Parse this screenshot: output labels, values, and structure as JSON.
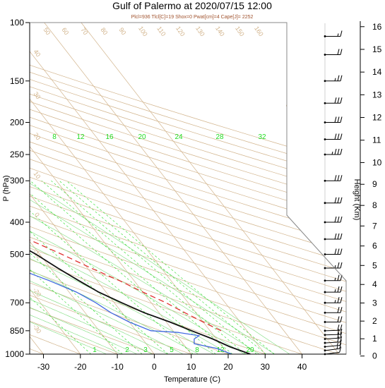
{
  "chart_data": {
    "type": "skew-t",
    "title": "Gulf of Palermo at 2020/07/15 12:00",
    "subtitle": "Plcl=936 Tlcl[C]=19 Shox=0 Pwat[cm]=4 Cape[J]= 2252",
    "xlabel": "Temperature (C)",
    "ylabel": "P (hPa)",
    "y2label": "Height (Km)",
    "x_ticks": [
      "-30",
      "-20",
      "-10",
      "0",
      "10",
      "20",
      "30",
      "40"
    ],
    "p_ticks": [
      "100",
      "150",
      "200",
      "250",
      "300",
      "400",
      "500",
      "700",
      "850",
      "1000"
    ],
    "height_ticks": [
      "0",
      "1",
      "2",
      "3",
      "4",
      "5",
      "6",
      "7",
      "8",
      "9",
      "10",
      "11",
      "12",
      "13",
      "14",
      "15",
      "16"
    ],
    "mixing_ratio_labels": [
      "8",
      "12",
      "16",
      "20",
      "24",
      "28",
      "32"
    ],
    "mixing_ratio_bottom_labels": [
      "1",
      "2",
      "3",
      "5",
      "8",
      "12",
      "20"
    ],
    "dry_adiabat_labels": [
      "50",
      "60",
      "70",
      "80",
      "90",
      "100",
      "110",
      "120",
      "130",
      "140",
      "150",
      "160"
    ],
    "left_adiabat_labels": [
      "40",
      "30",
      "20",
      "10",
      "0",
      "-10",
      "-20",
      "-30"
    ],
    "isotherm_labels": [
      "30",
      "20",
      "10",
      "0",
      "-10",
      "-20",
      "-30"
    ],
    "colors": {
      "temperature": "#111111",
      "dewpoint": "#4169e1",
      "parcel": "#e03030",
      "dry_adiabat": "#d2b48c",
      "moist_adiabat": "#7ddc7d",
      "mixing_ratio": "#22dd22",
      "frame": "#888888"
    },
    "series": [
      {
        "kind": "temperature",
        "points": [
          [
            26,
            1000
          ],
          [
            22,
            950
          ],
          [
            19,
            900
          ],
          [
            15,
            850
          ],
          [
            11,
            800
          ],
          [
            6,
            750
          ],
          [
            2,
            700
          ],
          [
            -2,
            650
          ],
          [
            -5,
            600
          ],
          [
            -8,
            550
          ],
          [
            -11,
            500
          ],
          [
            -15,
            450
          ],
          [
            -20,
            400
          ],
          [
            -25,
            350
          ],
          [
            -31,
            300
          ],
          [
            -37,
            270
          ],
          [
            -43,
            250
          ],
          [
            -49,
            230
          ],
          [
            -55,
            210
          ],
          [
            -58,
            200
          ],
          [
            -64,
            180
          ],
          [
            -69,
            160
          ],
          [
            -73,
            150
          ],
          [
            -77,
            135
          ],
          [
            -79,
            120
          ],
          [
            -82,
            115
          ]
        ]
      },
      {
        "kind": "dewpoint",
        "points": [
          [
            21,
            1000
          ],
          [
            18,
            960
          ],
          [
            13,
            930
          ],
          [
            14,
            900
          ],
          [
            16,
            880
          ],
          [
            11,
            860
          ],
          [
            4,
            850
          ],
          [
            0,
            800
          ],
          [
            -3,
            750
          ],
          [
            -5,
            700
          ],
          [
            -8,
            650
          ],
          [
            -13,
            600
          ],
          [
            -18,
            560
          ],
          [
            -17,
            500
          ],
          [
            -22,
            460
          ],
          [
            -26,
            420
          ],
          [
            -30,
            380
          ],
          [
            -35,
            340
          ],
          [
            -40,
            300
          ],
          [
            -46,
            260
          ],
          [
            -58,
            240
          ],
          [
            -75,
            210
          ],
          [
            -91,
            200
          ],
          [
            -104,
            150
          ],
          [
            -116,
            120
          ]
        ]
      },
      {
        "kind": "parcel",
        "points": [
          [
            23,
            850
          ],
          [
            20,
            800
          ],
          [
            17,
            750
          ],
          [
            14,
            700
          ],
          [
            10,
            650
          ],
          [
            6,
            600
          ],
          [
            1,
            550
          ],
          [
            -4,
            500
          ],
          [
            -10,
            450
          ],
          [
            -17,
            400
          ],
          [
            -25,
            350
          ],
          [
            -31,
            320
          ],
          [
            -36,
            300
          ],
          [
            -41,
            280
          ]
        ]
      }
    ],
    "wind_barbs": [
      {
        "pressure": 1000,
        "speed": 10,
        "direction": 250
      },
      {
        "pressure": 975,
        "speed": 15,
        "direction": 250
      },
      {
        "pressure": 950,
        "speed": 15,
        "direction": 255
      },
      {
        "pressure": 925,
        "speed": 20,
        "direction": 260
      },
      {
        "pressure": 900,
        "speed": 20,
        "direction": 260
      },
      {
        "pressure": 875,
        "speed": 20,
        "direction": 265
      },
      {
        "pressure": 850,
        "speed": 20,
        "direction": 265
      },
      {
        "pressure": 800,
        "speed": 20,
        "direction": 270
      },
      {
        "pressure": 750,
        "speed": 20,
        "direction": 270
      },
      {
        "pressure": 700,
        "speed": 25,
        "direction": 270
      },
      {
        "pressure": 650,
        "speed": 25,
        "direction": 270
      },
      {
        "pressure": 600,
        "speed": 25,
        "direction": 270
      },
      {
        "pressure": 550,
        "speed": 25,
        "direction": 270
      },
      {
        "pressure": 500,
        "speed": 30,
        "direction": 270
      },
      {
        "pressure": 450,
        "speed": 30,
        "direction": 270
      },
      {
        "pressure": 400,
        "speed": 30,
        "direction": 270
      },
      {
        "pressure": 350,
        "speed": 30,
        "direction": 270
      },
      {
        "pressure": 300,
        "speed": 30,
        "direction": 270
      },
      {
        "pressure": 250,
        "speed": 35,
        "direction": 270
      },
      {
        "pressure": 225,
        "speed": 30,
        "direction": 270
      },
      {
        "pressure": 200,
        "speed": 30,
        "direction": 270
      },
      {
        "pressure": 175,
        "speed": 30,
        "direction": 270
      },
      {
        "pressure": 150,
        "speed": 25,
        "direction": 270
      },
      {
        "pressure": 125,
        "speed": 20,
        "direction": 270
      },
      {
        "pressure": 110,
        "speed": 15,
        "direction": 270
      }
    ]
  }
}
